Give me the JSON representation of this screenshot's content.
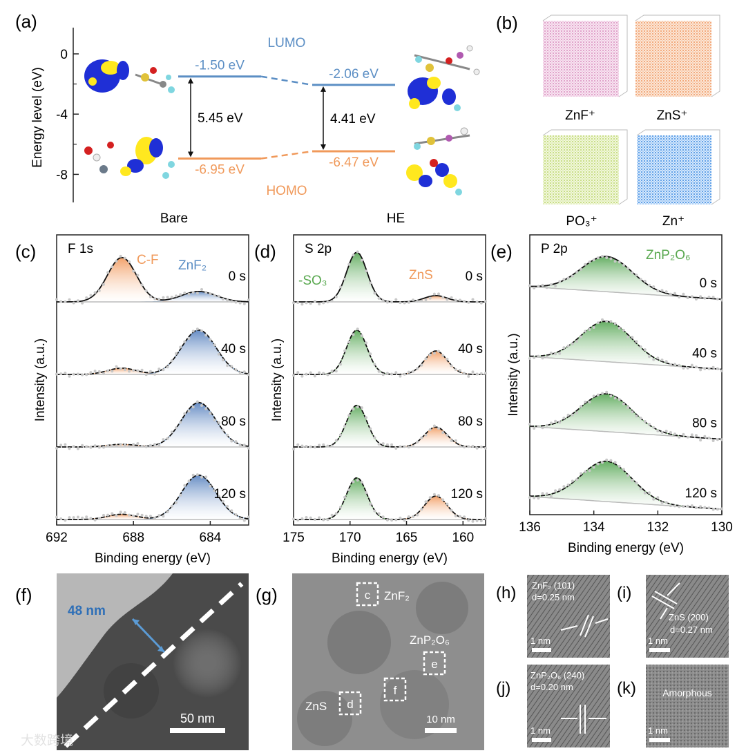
{
  "colors": {
    "blue": "#5b8ec4",
    "orange": "#f0995a",
    "green": "#59a84f",
    "pink": "#de8fc2",
    "peach": "#f3a06a",
    "lime": "#bdd86a",
    "sky": "#3b8de0",
    "grey": "#bdbdbd"
  },
  "panel_a": {
    "label": "(a)",
    "ylabel": "Energy level (eV)",
    "yticks": [
      "0",
      "-4",
      "-8"
    ],
    "lumo_label": "LUMO",
    "homo_label": "HOMO",
    "groups": [
      "Bare",
      "HE"
    ]
  },
  "panel_b": {
    "label": "(b)",
    "cubes": [
      "ZnF⁺",
      "ZnS⁺",
      "PO₃⁺",
      "Zn⁺"
    ]
  },
  "panel_c": {
    "label": "(c)",
    "title": "F 1s",
    "peak1": "C-F",
    "peak2": "ZnF₂",
    "xticks": [
      "692",
      "688",
      "684"
    ],
    "xlabel": "Binding energy (eV)",
    "ylabel": "Intensity (a.u.)"
  },
  "panel_d": {
    "label": "(d)",
    "title": "S 2p",
    "peak1": "-SO₃",
    "peak2": "ZnS",
    "xticks": [
      "175",
      "170",
      "165",
      "160"
    ],
    "xlabel": "Binding energy (eV)",
    "ylabel": "Intensity (a.u.)"
  },
  "panel_e": {
    "label": "(e)",
    "title": "P 2p",
    "peak1": "ZnP₂O₆",
    "xticks": [
      "136",
      "134",
      "132",
      "130"
    ],
    "xlabel": "Binding energy (eV)",
    "ylabel": "Intensity (a.u.)"
  },
  "sputter_times": [
    "0 s",
    "40 s",
    "80 s",
    "120 s"
  ],
  "panel_f": {
    "label": "(f)",
    "thickness": "48 nm",
    "scale": "50 nm"
  },
  "panel_g": {
    "label": "(g)",
    "boxes": [
      "c",
      "e",
      "f",
      "d"
    ],
    "phases": [
      "ZnF₂",
      "ZnP₂O₆",
      "ZnS"
    ],
    "scale": "10 nm"
  },
  "panel_h": {
    "label": "(h)",
    "line1": "ZnF₂ (101)",
    "line2": "d=0.25 nm",
    "scale": "1 nm"
  },
  "panel_i": {
    "label": "(i)",
    "line1": "ZnS (200)",
    "line2": "d=0.27 nm",
    "scale": "1 nm"
  },
  "panel_j": {
    "label": "(j)",
    "line1": "ZnP₂O₆ (240)",
    "line2": "d=0.20 nm",
    "scale": "1 nm"
  },
  "panel_k": {
    "label": "(k)",
    "line1": "Amorphous",
    "scale": "1 nm"
  },
  "watermark": "大数跨境",
  "chart_data": [
    {
      "type": "energy-level diagram",
      "panel": "(a)",
      "ylabel": "Energy level (eV)",
      "ylim": [
        -10,
        1.5
      ],
      "categories": [
        "Bare",
        "HE"
      ],
      "series": [
        {
          "name": "LUMO",
          "values": [
            -1.5,
            -2.06
          ],
          "labels": [
            "-1.50 eV",
            "-2.06 eV"
          ]
        },
        {
          "name": "HOMO",
          "values": [
            -6.95,
            -6.47
          ],
          "labels": [
            "-6.95 eV",
            "-6.47 eV"
          ]
        }
      ],
      "gaps": [
        {
          "value": 5.45,
          "label": "5.45 eV"
        },
        {
          "value": 4.41,
          "label": "4.41 eV"
        }
      ]
    },
    {
      "type": "line",
      "panel": "(c)",
      "title": "F 1s",
      "xlim": [
        692,
        682
      ],
      "xlabel": "Binding energy (eV)",
      "peaks": [
        {
          "name": "C-F",
          "center": 688.6
        },
        {
          "name": "ZnF₂",
          "center": 684.6
        }
      ],
      "rel_intensity": {
        "0 s": [
          0.85,
          0.2
        ],
        "40 s": [
          0.12,
          0.85
        ],
        "80 s": [
          0.05,
          0.85
        ],
        "120 s": [
          0.1,
          0.85
        ]
      }
    },
    {
      "type": "line",
      "panel": "(d)",
      "title": "S 2p",
      "xlim": [
        175,
        158
      ],
      "xlabel": "Binding energy (eV)",
      "peaks": [
        {
          "name": "-SO₃",
          "center": 169.4
        },
        {
          "name": "ZnS",
          "center": 162.4
        }
      ],
      "rel_intensity": {
        "0 s": [
          0.95,
          0.12
        ],
        "40 s": [
          0.85,
          0.45
        ],
        "80 s": [
          0.8,
          0.38
        ],
        "120 s": [
          0.8,
          0.45
        ]
      }
    },
    {
      "type": "line",
      "panel": "(e)",
      "title": "P 2p",
      "xlim": [
        136,
        130
      ],
      "xlabel": "Binding energy (eV)",
      "peaks": [
        {
          "name": "ZnP₂O₆",
          "center": 133.6
        }
      ],
      "rel_intensity": {
        "0 s": [
          0.7
        ],
        "40 s": [
          0.8
        ],
        "80 s": [
          0.75
        ],
        "120 s": [
          0.8
        ]
      }
    }
  ]
}
